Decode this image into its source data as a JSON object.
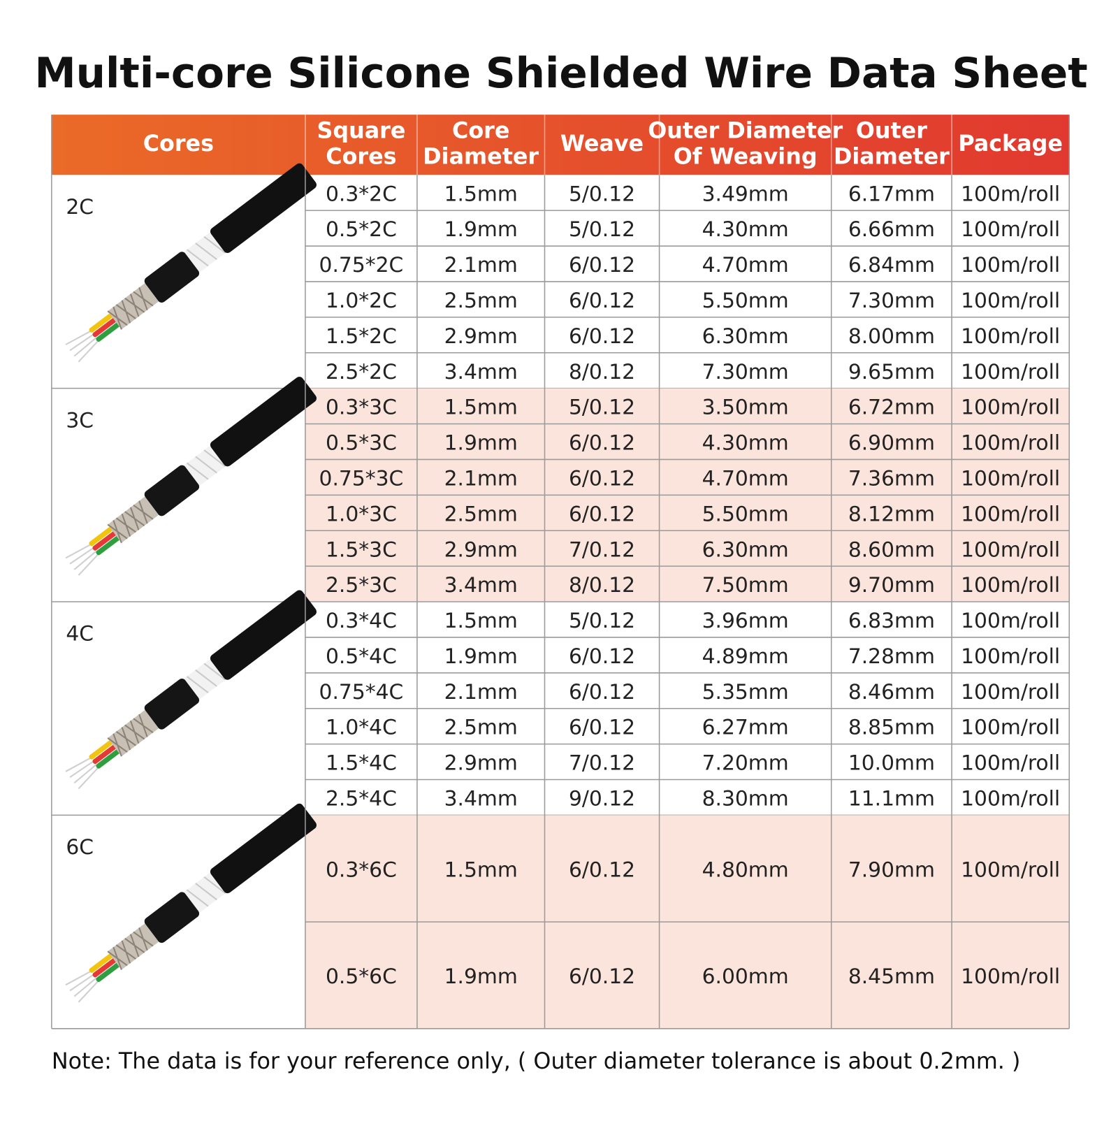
{
  "title": "Multi-core Silicone Shielded Wire Data Sheet",
  "table": {
    "headers": [
      [
        "Cores"
      ],
      [
        "Square",
        "Cores"
      ],
      [
        "Core",
        "Diameter"
      ],
      [
        "Weave"
      ],
      [
        "Outer Diameter",
        "Of Weaving"
      ],
      [
        "Outer",
        "Diameter"
      ],
      [
        "Package"
      ]
    ],
    "groups": [
      {
        "label": "2C",
        "rows": [
          [
            "0.3*2C",
            "1.5mm",
            "5/0.12",
            "3.49mm",
            "6.17mm",
            "100m/roll"
          ],
          [
            "0.5*2C",
            "1.9mm",
            "5/0.12",
            "4.30mm",
            "6.66mm",
            "100m/roll"
          ],
          [
            "0.75*2C",
            "2.1mm",
            "6/0.12",
            "4.70mm",
            "6.84mm",
            "100m/roll"
          ],
          [
            "1.0*2C",
            "2.5mm",
            "6/0.12",
            "5.50mm",
            "7.30mm",
            "100m/roll"
          ],
          [
            "1.5*2C",
            "2.9mm",
            "6/0.12",
            "6.30mm",
            "8.00mm",
            "100m/roll"
          ],
          [
            "2.5*2C",
            "3.4mm",
            "8/0.12",
            "7.30mm",
            "9.65mm",
            "100m/roll"
          ]
        ]
      },
      {
        "label": "3C",
        "rows": [
          [
            "0.3*3C",
            "1.5mm",
            "5/0.12",
            "3.50mm",
            "6.72mm",
            "100m/roll"
          ],
          [
            "0.5*3C",
            "1.9mm",
            "6/0.12",
            "4.30mm",
            "6.90mm",
            "100m/roll"
          ],
          [
            "0.75*3C",
            "2.1mm",
            "6/0.12",
            "4.70mm",
            "7.36mm",
            "100m/roll"
          ],
          [
            "1.0*3C",
            "2.5mm",
            "6/0.12",
            "5.50mm",
            "8.12mm",
            "100m/roll"
          ],
          [
            "1.5*3C",
            "2.9mm",
            "7/0.12",
            "6.30mm",
            "8.60mm",
            "100m/roll"
          ],
          [
            "2.5*3C",
            "3.4mm",
            "8/0.12",
            "7.50mm",
            "9.70mm",
            "100m/roll"
          ]
        ]
      },
      {
        "label": "4C",
        "rows": [
          [
            "0.3*4C",
            "1.5mm",
            "5/0.12",
            "3.96mm",
            "6.83mm",
            "100m/roll"
          ],
          [
            "0.5*4C",
            "1.9mm",
            "6/0.12",
            "4.89mm",
            "7.28mm",
            "100m/roll"
          ],
          [
            "0.75*4C",
            "2.1mm",
            "6/0.12",
            "5.35mm",
            "8.46mm",
            "100m/roll"
          ],
          [
            "1.0*4C",
            "2.5mm",
            "6/0.12",
            "6.27mm",
            "8.85mm",
            "100m/roll"
          ],
          [
            "1.5*4C",
            "2.9mm",
            "7/0.12",
            "7.20mm",
            "10.0mm",
            "100m/roll"
          ],
          [
            "2.5*4C",
            "3.4mm",
            "9/0.12",
            "8.30mm",
            "11.1mm",
            "100m/roll"
          ]
        ]
      },
      {
        "label": "6C",
        "rows": [
          [
            "0.3*6C",
            "1.5mm",
            "6/0.12",
            "4.80mm",
            "7.90mm",
            "100m/roll"
          ],
          [
            "0.5*6C",
            "1.9mm",
            "6/0.12",
            "6.00mm",
            "8.45mm",
            "100m/roll"
          ]
        ]
      }
    ]
  },
  "note": "Note:  The data is for your reference only, ( Outer diameter tolerance is about 0.2mm. )"
}
